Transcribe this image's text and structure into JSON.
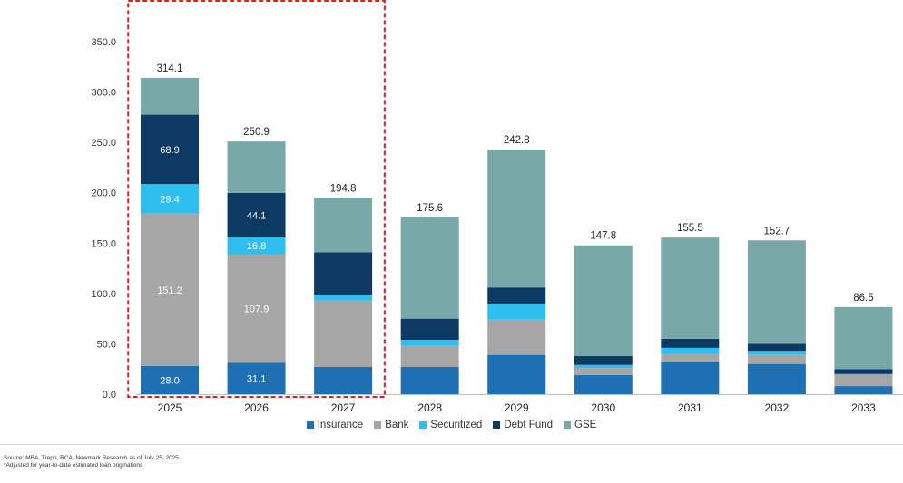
{
  "chart_data": {
    "type": "bar",
    "stacked": true,
    "categories": [
      "2025",
      "2026",
      "2027",
      "2028",
      "2029",
      "2030",
      "2031",
      "2032",
      "2033"
    ],
    "series": [
      {
        "name": "Insurance",
        "color": "#1f6fb5",
        "values": [
          28.0,
          31.1,
          27.0,
          27.0,
          39.0,
          19.0,
          32.0,
          30.0,
          8.0
        ]
      },
      {
        "name": "Bank",
        "color": "#a6a6a6",
        "values": [
          151.2,
          107.9,
          66.0,
          21.0,
          35.0,
          7.0,
          8.0,
          9.0,
          11.0
        ]
      },
      {
        "name": "Securitized",
        "color": "#2fbfef",
        "values": [
          29.4,
          16.8,
          6.0,
          6.0,
          16.0,
          3.0,
          6.0,
          4.0,
          1.0
        ]
      },
      {
        "name": "Debt Fund",
        "color": "#0d3a63",
        "values": [
          68.9,
          44.1,
          42.0,
          21.0,
          16.0,
          9.0,
          9.0,
          7.0,
          5.0
        ]
      },
      {
        "name": "GSE",
        "color": "#79a8a9",
        "values": [
          36.6,
          51.0,
          53.8,
          100.6,
          136.8,
          109.8,
          100.5,
          102.7,
          61.5
        ]
      }
    ],
    "totals": [
      "314.1",
      "250.9",
      "194.8",
      "175.6",
      "242.8",
      "147.8",
      "155.5",
      "152.7",
      "86.5"
    ],
    "segment_labels": [
      {
        "category": "2025",
        "series": "Insurance",
        "text": "28.0"
      },
      {
        "category": "2025",
        "series": "Bank",
        "text": "151.2"
      },
      {
        "category": "2025",
        "series": "Securitized",
        "text": "29.4"
      },
      {
        "category": "2025",
        "series": "Debt Fund",
        "text": "68.9"
      },
      {
        "category": "2026",
        "series": "Insurance",
        "text": "31.1"
      },
      {
        "category": "2026",
        "series": "Bank",
        "text": "107.9"
      },
      {
        "category": "2026",
        "series": "Securitized",
        "text": "16.8"
      },
      {
        "category": "2026",
        "series": "Debt Fund",
        "text": "44.1"
      }
    ],
    "yticks": [
      "0.0",
      "50.0",
      "100.0",
      "150.0",
      "200.0",
      "250.0",
      "300.0",
      "350.0"
    ],
    "ylim": [
      0,
      350
    ],
    "highlight": {
      "categories": [
        "2025",
        "2026",
        "2027"
      ],
      "color": "#e02020",
      "style": "dashed"
    },
    "legend_position": "bottom",
    "grid": false
  },
  "source_lines": [
    "Source: MBA, Trepp, RCA, Newmark Research as of July 25, 2025",
    "*Adjusted for year-to-date estimated loan originations"
  ]
}
